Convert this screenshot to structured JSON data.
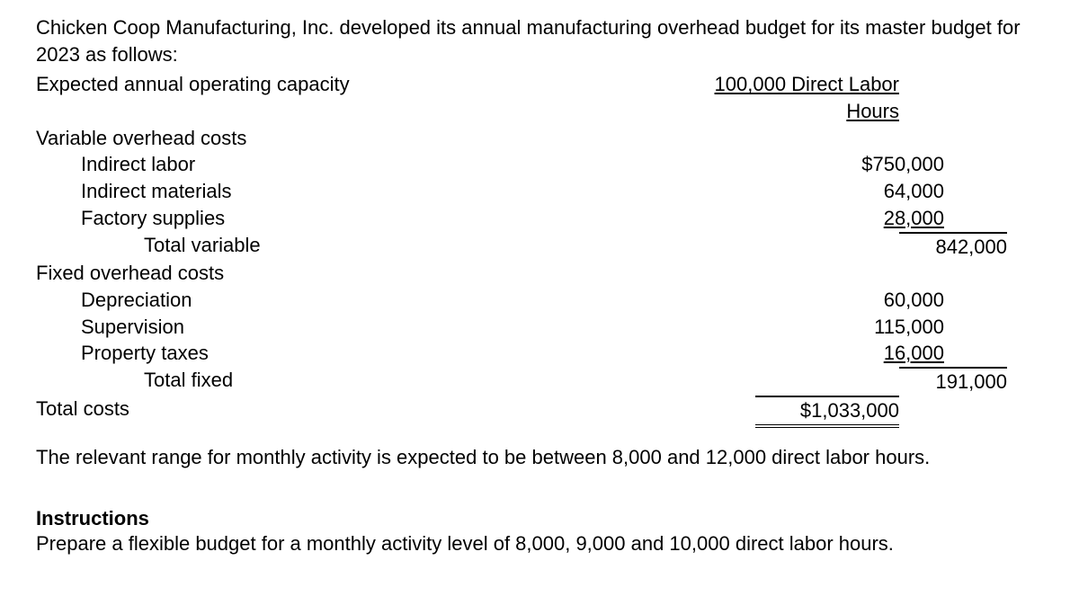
{
  "text_color": "#000000",
  "background_color": "#ffffff",
  "font_family": "Arial",
  "font_size_pt": 17,
  "intro": "Chicken Coop Manufacturing, Inc. developed its annual manufacturing overhead budget for its master budget for 2023 as follows:",
  "capacity_label": "Expected annual operating capacity",
  "capacity_value": "100,000 Direct Labor Hours",
  "variable_heading": "Variable overhead costs",
  "variable_items": {
    "indirect_labor_label": "Indirect labor",
    "indirect_labor_value": "$750,000",
    "indirect_materials_label": "Indirect materials",
    "indirect_materials_value": "64,000",
    "factory_supplies_label": "Factory supplies",
    "factory_supplies_value": "28,000",
    "total_label": "Total variable",
    "total_value": "842,000"
  },
  "fixed_heading": "Fixed overhead costs",
  "fixed_items": {
    "depreciation_label": "Depreciation",
    "depreciation_value": "60,000",
    "supervision_label": "Supervision",
    "supervision_value": "115,000",
    "property_taxes_label": "Property taxes",
    "property_taxes_value": "16,000",
    "total_label": "Total fixed",
    "total_value": "191,000"
  },
  "total_costs_label": "Total costs",
  "total_costs_value": "$1,033,000",
  "relevant_range_para": "The relevant range for monthly activity is expected to be between 8,000 and 12,000 direct labor hours.",
  "instructions_heading": "Instructions",
  "instructions_body": "Prepare a flexible budget for a monthly activity level of 8,000, 9,000 and 10,000 direct labor hours."
}
